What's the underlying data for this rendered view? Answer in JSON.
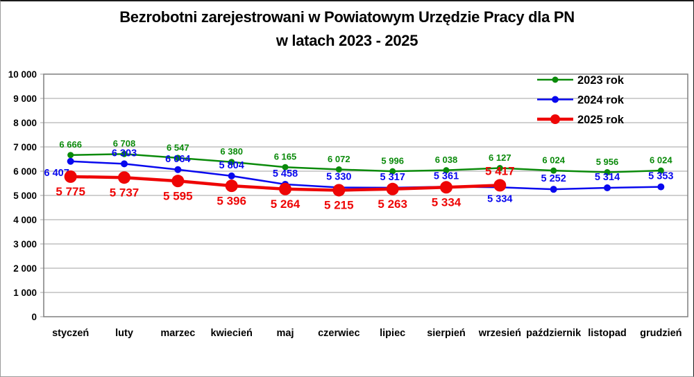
{
  "title": {
    "line1": "Bezrobotni zarejestrowani w Powiatowym Urzędzie Pracy dla PN",
    "line2": "w latach 2023 - 2025"
  },
  "chart_data": {
    "type": "line",
    "title": "Bezrobotni zarejestrowani w Powiatowym Urzędzie Pracy dla PN w latach 2023 - 2025",
    "xlabel": "",
    "ylabel": "",
    "ylim": [
      0,
      10000
    ],
    "y_tick_step": 1000,
    "grid": "horizontal",
    "legend_position": "top-right-inside",
    "number_format": "space-thousands",
    "categories": [
      "styczeń",
      "luty",
      "marzec",
      "kwiecień",
      "maj",
      "czerwiec",
      "lipiec",
      "sierpień",
      "wrzesień",
      "październik",
      "listopad",
      "grudzień"
    ],
    "series": [
      {
        "name": "2023 rok",
        "color": "#0a8a0a",
        "line_width": 2.5,
        "marker_radius": 4.5,
        "label_font_size": 13,
        "label_side": "above",
        "label_overrides": {},
        "values": [
          6666,
          6708,
          6547,
          6380,
          6165,
          6072,
          5996,
          6038,
          6127,
          6024,
          5956,
          6024
        ]
      },
      {
        "name": "2024 rok",
        "color": "#0808ee",
        "line_width": 2.5,
        "marker_radius": 5,
        "label_font_size": 14.5,
        "label_side": "above",
        "label_overrides": {
          "0": {
            "side": "below",
            "dx": -20
          },
          "8": {
            "side": "below"
          }
        },
        "values": [
          6407,
          6303,
          6064,
          5804,
          5458,
          5330,
          5317,
          5361,
          5334,
          5252,
          5314,
          5353
        ]
      },
      {
        "name": "2025 rok",
        "color": "#ee0505",
        "line_width": 4.5,
        "marker_radius": 9,
        "label_font_size": 17,
        "label_side": "below",
        "label_overrides": {
          "8": {
            "side": "above"
          }
        },
        "values": [
          5775,
          5737,
          5595,
          5396,
          5264,
          5215,
          5263,
          5334,
          5417
        ]
      }
    ],
    "colors": {
      "grid": "#b3b3b3",
      "plot_border": "#7f7f7f",
      "text": "#000000",
      "background": "#ffffff"
    }
  }
}
